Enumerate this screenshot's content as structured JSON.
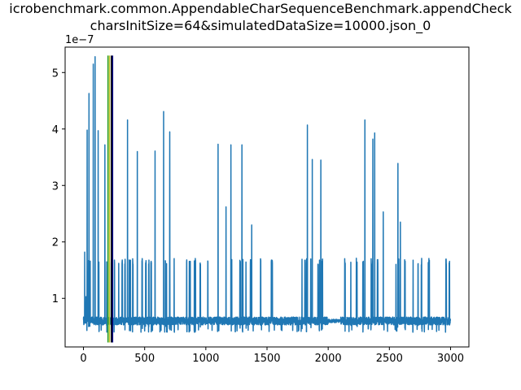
{
  "chart_data": {
    "type": "line",
    "title_line1": "icrobenchmark.common.AppendableCharSequenceBenchmark.appendCheck",
    "title_line2": "charsInitSize=64&simulatedDataSize=10000.json_0",
    "xlabel": "",
    "ylabel": "",
    "y_offset_label": "1e−7",
    "xlim": [
      -150,
      3150
    ],
    "ylim": [
      0.14,
      5.45
    ],
    "x_ticks": [
      0,
      500,
      1000,
      1500,
      2000,
      2500,
      3000
    ],
    "x_tick_labels": [
      "0",
      "500",
      "1000",
      "1500",
      "2000",
      "2500",
      "3000"
    ],
    "y_ticks": [
      1,
      2,
      3,
      4,
      5
    ],
    "y_tick_labels": [
      "1",
      "2",
      "3",
      "4",
      "5"
    ],
    "grid": false,
    "colors": {
      "series": "#1f77b4",
      "vline_green": "#2ca02c",
      "vline_yellow": "#bcbd22",
      "vline_black": "#000000",
      "vline_navy": "#000080"
    },
    "vertical_lines": [
      {
        "x": 200,
        "color": "#2ca02c"
      },
      {
        "x": 212,
        "color": "#bcbd22"
      },
      {
        "x": 228,
        "color": "#000000"
      },
      {
        "x": 238,
        "color": "#000080"
      }
    ],
    "series": [
      {
        "n_points": 3000,
        "baseline": 0.6,
        "low_value": 0.4,
        "burst_value": 1.65,
        "spikes": [
          {
            "x": 10,
            "y": 1.82
          },
          {
            "x": 30,
            "y": 3.98
          },
          {
            "x": 45,
            "y": 4.63
          },
          {
            "x": 80,
            "y": 5.15
          },
          {
            "x": 95,
            "y": 5.28
          },
          {
            "x": 120,
            "y": 3.97
          },
          {
            "x": 175,
            "y": 3.72
          },
          {
            "x": 360,
            "y": 4.16
          },
          {
            "x": 440,
            "y": 3.6
          },
          {
            "x": 585,
            "y": 3.61
          },
          {
            "x": 655,
            "y": 4.31
          },
          {
            "x": 705,
            "y": 3.95
          },
          {
            "x": 1100,
            "y": 3.73
          },
          {
            "x": 1165,
            "y": 2.62
          },
          {
            "x": 1205,
            "y": 3.72
          },
          {
            "x": 1295,
            "y": 3.72
          },
          {
            "x": 1375,
            "y": 2.3
          },
          {
            "x": 1830,
            "y": 4.07
          },
          {
            "x": 1870,
            "y": 3.46
          },
          {
            "x": 1940,
            "y": 3.45
          },
          {
            "x": 2300,
            "y": 4.16
          },
          {
            "x": 2365,
            "y": 3.82
          },
          {
            "x": 2380,
            "y": 3.93
          },
          {
            "x": 2450,
            "y": 2.53
          },
          {
            "x": 2570,
            "y": 3.39
          },
          {
            "x": 2590,
            "y": 2.35
          }
        ],
        "quiet_ranges": [
          [
            2000,
            2100
          ]
        ]
      }
    ]
  }
}
